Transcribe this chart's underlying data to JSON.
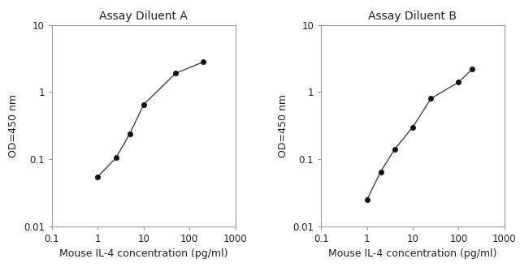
{
  "title_A": "Assay Diluent A",
  "title_B": "Assay Diluent B",
  "xlabel": "Mouse IL-4 concentration (pg/ml)",
  "ylabel": "OD=450 nm",
  "x_A": [
    1,
    2.5,
    5,
    10,
    50,
    200
  ],
  "y_A": [
    0.055,
    0.105,
    0.24,
    0.65,
    1.9,
    2.8
  ],
  "x_B": [
    1,
    2,
    4,
    10,
    25,
    100,
    200
  ],
  "y_B": [
    0.025,
    0.065,
    0.14,
    0.3,
    0.8,
    1.4,
    2.2
  ],
  "xlim": [
    0.1,
    1000
  ],
  "ylim": [
    0.01,
    10
  ],
  "line_color": "#444444",
  "marker_color": "#111111",
  "title_fontsize": 10,
  "label_fontsize": 9,
  "tick_fontsize": 8.5,
  "text_color": "#222222",
  "spine_color": "#999999"
}
